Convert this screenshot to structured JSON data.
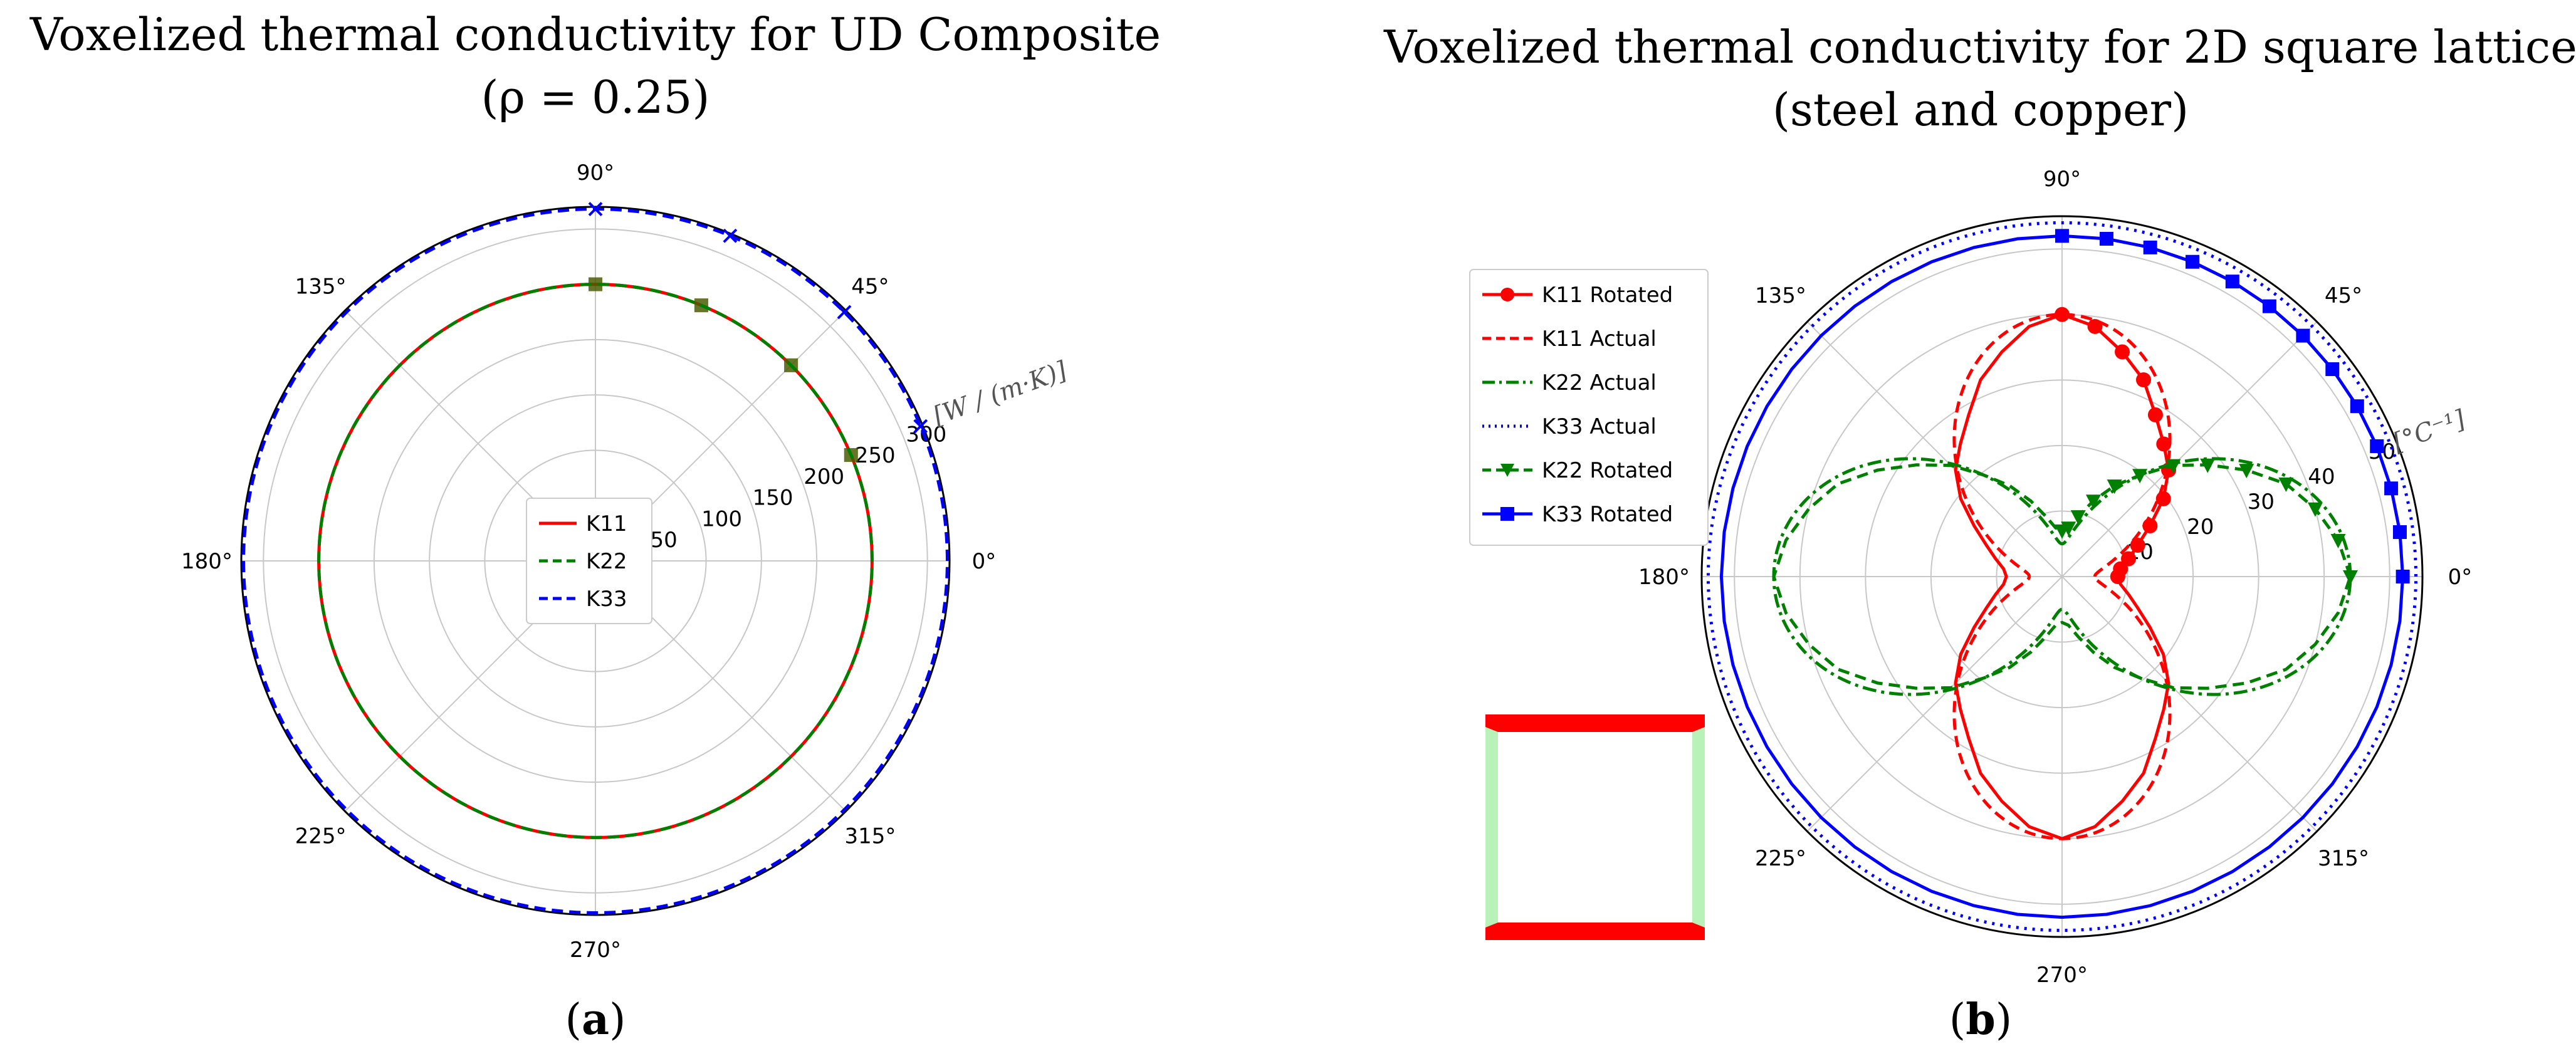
{
  "chart_data": [
    {
      "type": "polar",
      "panel_label": "a",
      "title": "Voxelized thermal conductivity for UD Composite",
      "subtitle": "(ρ = 0.25)",
      "unit_label": "[W / (m·K)]",
      "angle_ticks": [
        "0°",
        "45°",
        "90°",
        "135°",
        "180°",
        "225°",
        "270°",
        "315°"
      ],
      "r_ticks": [
        50,
        100,
        150,
        200,
        250,
        300
      ],
      "r_tick_labels": [
        "50",
        "100",
        "150",
        "200",
        "250",
        "300"
      ],
      "rlim": [
        0,
        320
      ],
      "grid": true,
      "legend_position": "center",
      "series": [
        {
          "name": "K11",
          "color": "#ff0000",
          "dash": "solid",
          "marker": "square",
          "value": 250
        },
        {
          "name": "K22",
          "color": "#008000",
          "dash": "dashed",
          "marker": "square",
          "value": 250
        },
        {
          "name": "K33",
          "color": "#0000ff",
          "dash": "dashed",
          "marker": "x",
          "value": 318
        }
      ]
    },
    {
      "type": "polar",
      "panel_label": "b",
      "title": "Voxelized thermal conductivity for 2D square lattice",
      "subtitle": "(steel and copper)",
      "unit_label": "[°C⁻¹]",
      "angle_ticks": [
        "0°",
        "45°",
        "90°",
        "135°",
        "180°",
        "225°",
        "270°",
        "315°"
      ],
      "r_ticks": [
        10,
        20,
        30,
        40,
        50
      ],
      "r_tick_labels": [
        "10",
        "20",
        "30",
        "40",
        "50"
      ],
      "rlim": [
        0,
        55
      ],
      "grid": true,
      "legend_position": "upper-left",
      "series": [
        {
          "name": "K11 Rotated",
          "color": "#ff0000",
          "dash": "solid",
          "marker": "circle",
          "theta_deg": [
            0,
            7.5,
            15,
            22.5,
            30,
            37.5,
            45,
            52.5,
            60,
            67.5,
            75,
            82.5,
            90
          ],
          "r": [
            8.5,
            9,
            10.5,
            12.5,
            15.5,
            19.5,
            23,
            25.5,
            28.5,
            32.5,
            35.5,
            38.5,
            40
          ]
        },
        {
          "name": "K11 Actual",
          "color": "#ff0000",
          "dash": "dashed",
          "form": "a+b*sin^2",
          "a": 5,
          "b": 35
        },
        {
          "name": "K22 Actual",
          "color": "#008000",
          "dash": "dashdot",
          "form": "a+b*cos^2",
          "a": 5,
          "b": 39
        },
        {
          "name": "K33 Actual",
          "color": "#0000ff",
          "dash": "dotted",
          "form": "constant",
          "a": 54
        },
        {
          "name": "K22 Rotated",
          "color": "#008000",
          "dash": "dashed",
          "marker": "triangle-down",
          "theta_deg": [
            0,
            7.5,
            15,
            22.5,
            30,
            37.5,
            45,
            52.5,
            60,
            67.5,
            75,
            82.5,
            90
          ],
          "r": [
            44,
            42.5,
            40,
            37,
            32.5,
            28,
            24,
            19.5,
            16,
            12.5,
            9.5,
            7.5,
            7
          ]
        },
        {
          "name": "K33 Rotated",
          "color": "#0000ff",
          "dash": "solid",
          "marker": "square",
          "theta_deg": [
            0,
            7.5,
            15,
            22.5,
            30,
            37.5,
            45,
            52.5,
            60,
            67.5,
            75,
            82.5,
            90
          ],
          "r": [
            52,
            52,
            52,
            52,
            52,
            52,
            52,
            52,
            52,
            52,
            52,
            52,
            52
          ]
        }
      ],
      "inset": {
        "image": "2D square lattice unit cell (red top/bottom struts, green side struts)"
      }
    }
  ],
  "legend_a_labels": [
    "K11",
    "K22",
    "K33"
  ],
  "legend_b_labels": [
    "K11 Rotated",
    "K11 Actual",
    "K22 Actual",
    "K33 Actual",
    "K22 Rotated",
    "K33 Rotated"
  ]
}
